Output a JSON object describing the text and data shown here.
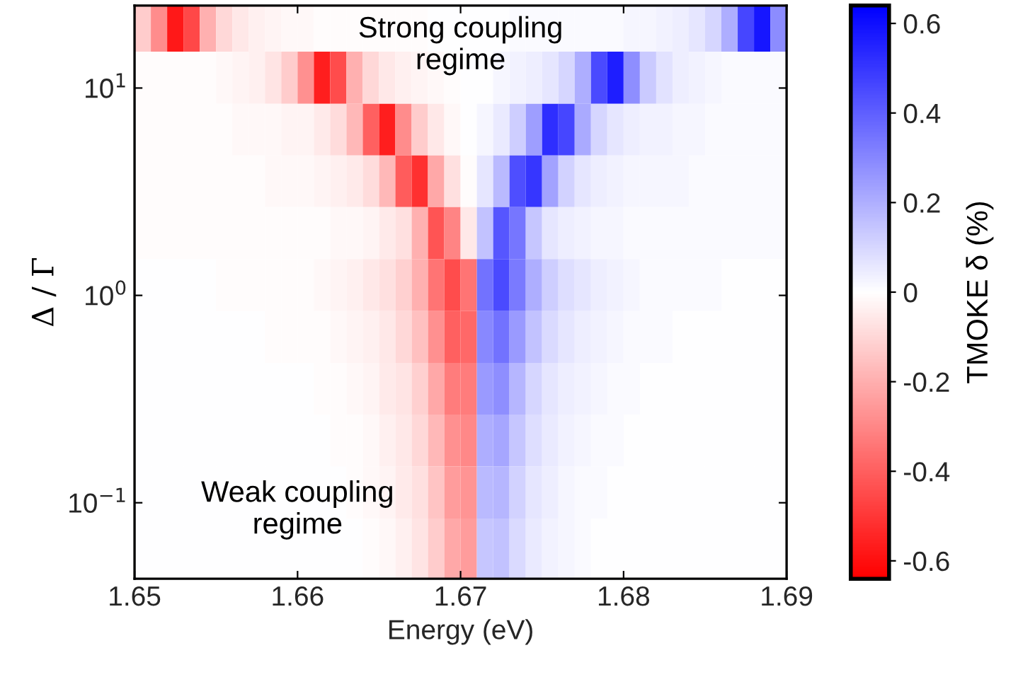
{
  "chart_data": {
    "type": "heatmap",
    "xlabel": "Energy (eV)",
    "ylabel": "Δ / Γ",
    "clabel": "TMOKE δ (%)",
    "annotations": [
      "Strong coupling\nregime",
      "Weak coupling\nregime"
    ],
    "x": [
      1.6505,
      1.6515,
      1.6525,
      1.6535,
      1.6545,
      1.6555,
      1.6565,
      1.6575,
      1.6585,
      1.6595,
      1.6605,
      1.6615,
      1.6625,
      1.6635,
      1.6645,
      1.6655,
      1.6665,
      1.6675,
      1.6685,
      1.6695,
      1.6705,
      1.6715,
      1.6725,
      1.6735,
      1.6745,
      1.6755,
      1.6765,
      1.6775,
      1.6785,
      1.6795,
      1.6805,
      1.6815,
      1.6825,
      1.6835,
      1.6845,
      1.6855,
      1.6865,
      1.6875,
      1.6885,
      1.6895
    ],
    "y": [
      20,
      11.2,
      6.3,
      3.55,
      2.0,
      1.12,
      0.63,
      0.355,
      0.2,
      0.112,
      0.063
    ],
    "cells": [
      [
        -0.13,
        -0.29,
        -0.58,
        -0.46,
        -0.2,
        -0.1,
        -0.06,
        -0.04,
        -0.03,
        -0.02,
        -0.02,
        -0.01,
        -0.01,
        -0.01,
        -0.01,
        -0.01,
        -0.01,
        -0.01,
        0,
        0,
        0,
        0,
        0,
        0.01,
        0.01,
        0.01,
        0.01,
        0.01,
        0.01,
        0.01,
        0.02,
        0.02,
        0.03,
        0.04,
        0.06,
        0.1,
        0.2,
        0.46,
        0.58,
        0.29
      ],
      [
        -0.01,
        -0.01,
        -0.01,
        -0.01,
        -0.01,
        -0.02,
        -0.03,
        -0.04,
        -0.07,
        -0.13,
        -0.28,
        -0.56,
        -0.45,
        -0.2,
        -0.1,
        -0.06,
        -0.04,
        -0.03,
        -0.02,
        -0.01,
        0,
        0,
        0.02,
        0.03,
        0.04,
        0.06,
        0.1,
        0.2,
        0.45,
        0.56,
        0.28,
        0.13,
        0.07,
        0.04,
        0.03,
        0.02,
        0.01,
        0.01,
        0.01,
        0.01
      ],
      [
        -0.01,
        -0.01,
        -0.01,
        -0.01,
        -0.01,
        -0.01,
        -0.02,
        -0.02,
        -0.02,
        -0.03,
        -0.03,
        -0.05,
        -0.09,
        -0.18,
        -0.4,
        -0.56,
        -0.29,
        -0.13,
        -0.06,
        -0.02,
        0,
        0.02,
        0.05,
        0.12,
        0.24,
        0.52,
        0.46,
        0.21,
        0.1,
        0.06,
        0.04,
        0.03,
        0.03,
        0.02,
        0.02,
        0.01,
        0.01,
        0.01,
        0.01,
        0.01
      ],
      [
        -0.01,
        -0.01,
        -0.01,
        -0.01,
        -0.01,
        -0.01,
        -0.01,
        -0.01,
        -0.02,
        -0.02,
        -0.02,
        -0.03,
        -0.04,
        -0.05,
        -0.09,
        -0.18,
        -0.41,
        -0.52,
        -0.22,
        -0.08,
        -0.01,
        0.06,
        0.17,
        0.44,
        0.5,
        0.23,
        0.11,
        0.06,
        0.04,
        0.03,
        0.02,
        0.02,
        0.02,
        0.02,
        0.01,
        0.01,
        0.01,
        0.01,
        0.01,
        0.01
      ],
      [
        -0.01,
        -0.01,
        -0.01,
        -0.01,
        -0.01,
        -0.01,
        -0.01,
        -0.01,
        -0.01,
        -0.01,
        -0.01,
        -0.01,
        -0.02,
        -0.02,
        -0.03,
        -0.05,
        -0.08,
        -0.2,
        -0.43,
        -0.31,
        -0.06,
        0.15,
        0.42,
        0.34,
        0.14,
        0.06,
        0.04,
        0.03,
        0.02,
        0.02,
        0.01,
        0.01,
        0.01,
        0.01,
        0.01,
        0.01,
        0.01,
        0.01,
        0.01,
        0.01
      ],
      [
        0,
        0,
        0,
        0,
        0,
        -0.01,
        -0.01,
        -0.01,
        -0.01,
        -0.01,
        -0.01,
        -0.02,
        -0.03,
        -0.04,
        -0.06,
        -0.08,
        -0.12,
        -0.2,
        -0.35,
        -0.45,
        -0.35,
        0.35,
        0.45,
        0.33,
        0.2,
        0.12,
        0.08,
        0.06,
        0.04,
        0.03,
        0.02,
        0.01,
        0.01,
        0.01,
        0.01,
        0.01,
        0,
        0,
        0,
        0
      ],
      [
        0,
        0,
        0,
        0,
        0,
        0,
        0,
        0,
        -0.01,
        -0.01,
        -0.01,
        -0.01,
        -0.02,
        -0.03,
        -0.04,
        -0.06,
        -0.1,
        -0.16,
        -0.28,
        -0.4,
        -0.38,
        0.3,
        0.35,
        0.25,
        0.15,
        0.09,
        0.06,
        0.04,
        0.03,
        0.02,
        0.01,
        0.01,
        0.01,
        0,
        0,
        0,
        0,
        0,
        0,
        0
      ],
      [
        0,
        0,
        0,
        0,
        0,
        0,
        0,
        0,
        0,
        0,
        0,
        -0.01,
        -0.01,
        -0.02,
        -0.03,
        -0.05,
        -0.07,
        -0.12,
        -0.22,
        -0.33,
        -0.33,
        0.25,
        0.28,
        0.18,
        0.1,
        0.06,
        0.04,
        0.03,
        0.02,
        0.01,
        0.01,
        0,
        0,
        0,
        0,
        0,
        0,
        0,
        0,
        0
      ],
      [
        0,
        0,
        0,
        0,
        0,
        0,
        0,
        0,
        0,
        0,
        0,
        0,
        -0.01,
        -0.01,
        -0.02,
        -0.04,
        -0.06,
        -0.1,
        -0.18,
        -0.28,
        -0.3,
        0.2,
        0.22,
        0.14,
        0.08,
        0.05,
        0.03,
        0.02,
        0.01,
        0.01,
        0,
        0,
        0,
        0,
        0,
        0,
        0,
        0,
        0,
        0
      ],
      [
        0,
        0,
        0,
        0,
        0,
        0,
        0,
        0,
        0,
        0,
        0,
        0,
        0,
        -0.01,
        -0.02,
        -0.03,
        -0.05,
        -0.08,
        -0.15,
        -0.25,
        -0.27,
        0.17,
        0.18,
        0.11,
        0.06,
        0.04,
        0.02,
        0.01,
        0.01,
        0,
        0,
        0,
        0,
        0,
        0,
        0,
        0,
        0,
        0,
        0
      ],
      [
        0,
        0,
        0,
        0,
        0,
        0,
        0,
        0,
        0,
        0,
        0,
        0,
        0,
        0,
        -0.01,
        -0.02,
        -0.04,
        -0.07,
        -0.13,
        -0.22,
        -0.25,
        0.14,
        0.15,
        0.09,
        0.05,
        0.03,
        0.02,
        0.01,
        0,
        0,
        0,
        0,
        0,
        0,
        0,
        0,
        0,
        0,
        0,
        0
      ]
    ],
    "xlim": [
      1.65,
      1.69
    ],
    "xticks": [
      1.65,
      1.66,
      1.67,
      1.68,
      1.69
    ],
    "ylim": [
      0.043,
      25
    ],
    "log": "y",
    "yticks": [
      {
        "value": 0.1,
        "label": "10$^{−1}$"
      },
      {
        "value": 1,
        "label": "10$^{0}$"
      },
      {
        "value": 10,
        "label": "10$^{1}$"
      }
    ],
    "clim": [
      -0.64,
      0.64
    ],
    "cticks": [
      -0.6,
      -0.4,
      -0.2,
      0,
      0.2,
      0.4,
      0.6
    ],
    "colors": [
      "#ff0000",
      "#ffffff",
      "#0000ff"
    ]
  }
}
